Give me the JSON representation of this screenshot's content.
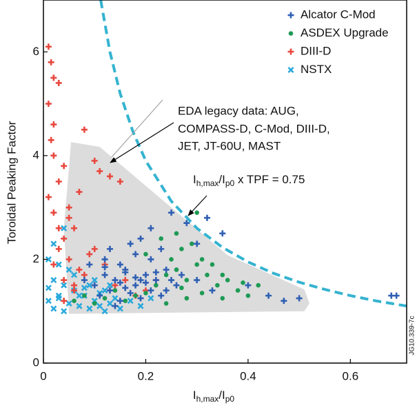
{
  "chart_data": {
    "type": "scatter",
    "x_label": [
      "I",
      "h,max",
      "/I",
      "p0"
    ],
    "y_label": "Toroidal Peaking Factor",
    "xlim": [
      0,
      0.71
    ],
    "ylim": [
      0,
      7
    ],
    "xticks": [
      0,
      0.2,
      0.4,
      0.6
    ],
    "yticks": [
      0,
      2,
      4,
      6
    ],
    "legend_position": "upper right",
    "annotations": [
      "EDA legacy data: AUG,",
      "COMPASS-D, C-Mod, DIII-D,",
      "JET, JT-60U, MAST"
    ],
    "curve_label": [
      "I",
      "h,max",
      "/I",
      "p0",
      " x TPF = 0.75"
    ],
    "figure_id": "JG10.339-7c",
    "region": {
      "color": "#dcdcdc",
      "x": [
        0.054,
        0.11,
        0.36,
        0.51,
        0.52,
        0.51,
        0.05,
        0.04
      ],
      "y": [
        4.26,
        4.17,
        2.08,
        1.42,
        1.15,
        1.0,
        0.95,
        2.6
      ]
    },
    "reference_curve": {
      "color": "#35b3d0",
      "x": [
        0.112,
        0.13,
        0.15,
        0.175,
        0.2,
        0.25,
        0.3,
        0.35,
        0.4,
        0.45,
        0.5,
        0.55,
        0.6,
        0.65,
        0.71
      ],
      "y": [
        7,
        6.0,
        5.2,
        4.46,
        3.9,
        3.12,
        2.6,
        2.23,
        1.95,
        1.73,
        1.56,
        1.42,
        1.3,
        1.2,
        1.1
      ]
    },
    "series": [
      {
        "name": "Alcator C-Mod",
        "marker": "plus",
        "color": "#2f5fb3",
        "x": [
          0.08,
          0.1,
          0.12,
          0.14,
          0.16,
          0.18,
          0.2,
          0.22,
          0.24,
          0.26,
          0.11,
          0.13,
          0.15,
          0.17,
          0.19,
          0.21,
          0.23,
          0.25,
          0.09,
          0.12,
          0.15,
          0.18,
          0.21,
          0.24,
          0.27,
          0.14,
          0.16,
          0.18,
          0.2,
          0.22,
          0.3,
          0.32,
          0.35,
          0.4,
          0.44,
          0.47,
          0.5,
          0.68,
          0.69,
          0.19,
          0.21,
          0.25,
          0.28,
          0.17,
          0.23,
          0.12,
          0.15,
          0.3,
          0.33,
          0.13,
          0.16,
          0.19
        ],
        "y": [
          1.6,
          1.5,
          1.7,
          1.6,
          1.8,
          1.5,
          1.7,
          1.6,
          1.4,
          1.5,
          1.3,
          1.4,
          1.2,
          1.35,
          1.25,
          1.4,
          1.3,
          1.6,
          1.9,
          2.0,
          1.9,
          2.1,
          2.0,
          1.8,
          1.7,
          1.1,
          1.45,
          1.65,
          1.55,
          1.75,
          2.3,
          2.8,
          2.5,
          1.5,
          1.3,
          1.2,
          1.25,
          1.3,
          1.3,
          2.4,
          2.6,
          2.9,
          2.7,
          2.3,
          2.2,
          1.85,
          1.55,
          1.6,
          1.4,
          2.2,
          1.75,
          1.6
        ]
      },
      {
        "name": "ASDEX Upgrade",
        "marker": "circle",
        "color": "#1e9a55",
        "x": [
          0.06,
          0.08,
          0.1,
          0.12,
          0.14,
          0.16,
          0.18,
          0.2,
          0.22,
          0.24,
          0.26,
          0.28,
          0.3,
          0.32,
          0.34,
          0.36,
          0.38,
          0.4,
          0.42,
          0.25,
          0.27,
          0.29,
          0.31,
          0.33,
          0.35,
          0.23,
          0.27,
          0.31,
          0.35,
          0.39,
          0.2,
          0.3,
          0.26,
          0.24,
          0.28
        ],
        "y": [
          1.2,
          1.3,
          1.15,
          1.25,
          1.4,
          1.2,
          1.3,
          1.35,
          1.5,
          1.7,
          1.8,
          1.6,
          1.9,
          1.7,
          1.5,
          1.6,
          1.4,
          1.3,
          1.5,
          2.0,
          2.2,
          2.3,
          2.0,
          1.9,
          1.7,
          2.4,
          1.45,
          1.35,
          1.25,
          1.55,
          2.1,
          2.9,
          2.5,
          1.15,
          1.25
        ]
      },
      {
        "name": "DIII-D",
        "marker": "plus",
        "color": "#e8483e",
        "x": [
          0.01,
          0.015,
          0.02,
          0.01,
          0.02,
          0.015,
          0.03,
          0.02,
          0.04,
          0.03,
          0.05,
          0.08,
          0.07,
          0.1,
          0.11,
          0.01,
          0.02,
          0.03,
          0.04,
          0.05,
          0.06,
          0.03,
          0.05,
          0.07,
          0.09,
          0.04,
          0.06,
          0.08,
          0.12,
          0.14,
          0.16,
          0.18,
          0.02,
          0.04,
          0.06,
          0.2,
          0.22,
          0.13,
          0.15,
          0.1
        ],
        "y": [
          6.1,
          5.8,
          5.5,
          5.0,
          4.6,
          4.3,
          5.4,
          4.0,
          3.8,
          3.5,
          3.0,
          4.5,
          3.3,
          3.9,
          3.7,
          3.2,
          2.9,
          2.6,
          2.4,
          2.8,
          2.6,
          2.2,
          2.0,
          1.8,
          2.1,
          1.6,
          1.4,
          1.7,
          1.9,
          1.5,
          1.6,
          1.3,
          1.9,
          1.2,
          1.5,
          1.4,
          1.6,
          3.6,
          3.5,
          2.2
        ]
      },
      {
        "name": "NSTX",
        "marker": "cross",
        "color": "#2aa9dc",
        "x": [
          0.01,
          0.02,
          0.03,
          0.04,
          0.05,
          0.06,
          0.07,
          0.08,
          0.09,
          0.1,
          0.11,
          0.12,
          0.13,
          0.14,
          0.15,
          0.02,
          0.04,
          0.06,
          0.08,
          0.1,
          0.12,
          0.01,
          0.03,
          0.05,
          0.07,
          0.09,
          0.11,
          0.13,
          0.02,
          0.04,
          0.01,
          0.03,
          0.17,
          0.19,
          0.21
        ],
        "y": [
          1.2,
          1.05,
          1.3,
          1.0,
          1.15,
          1.4,
          1.1,
          1.3,
          1.05,
          1.2,
          1.35,
          1.0,
          1.15,
          1.25,
          1.05,
          1.6,
          1.5,
          1.7,
          1.45,
          1.6,
          1.4,
          2.0,
          1.9,
          1.8,
          1.3,
          1.5,
          1.1,
          1.5,
          2.3,
          2.6,
          1.45,
          1.25,
          1.2,
          1.1,
          1.25
        ]
      }
    ]
  }
}
